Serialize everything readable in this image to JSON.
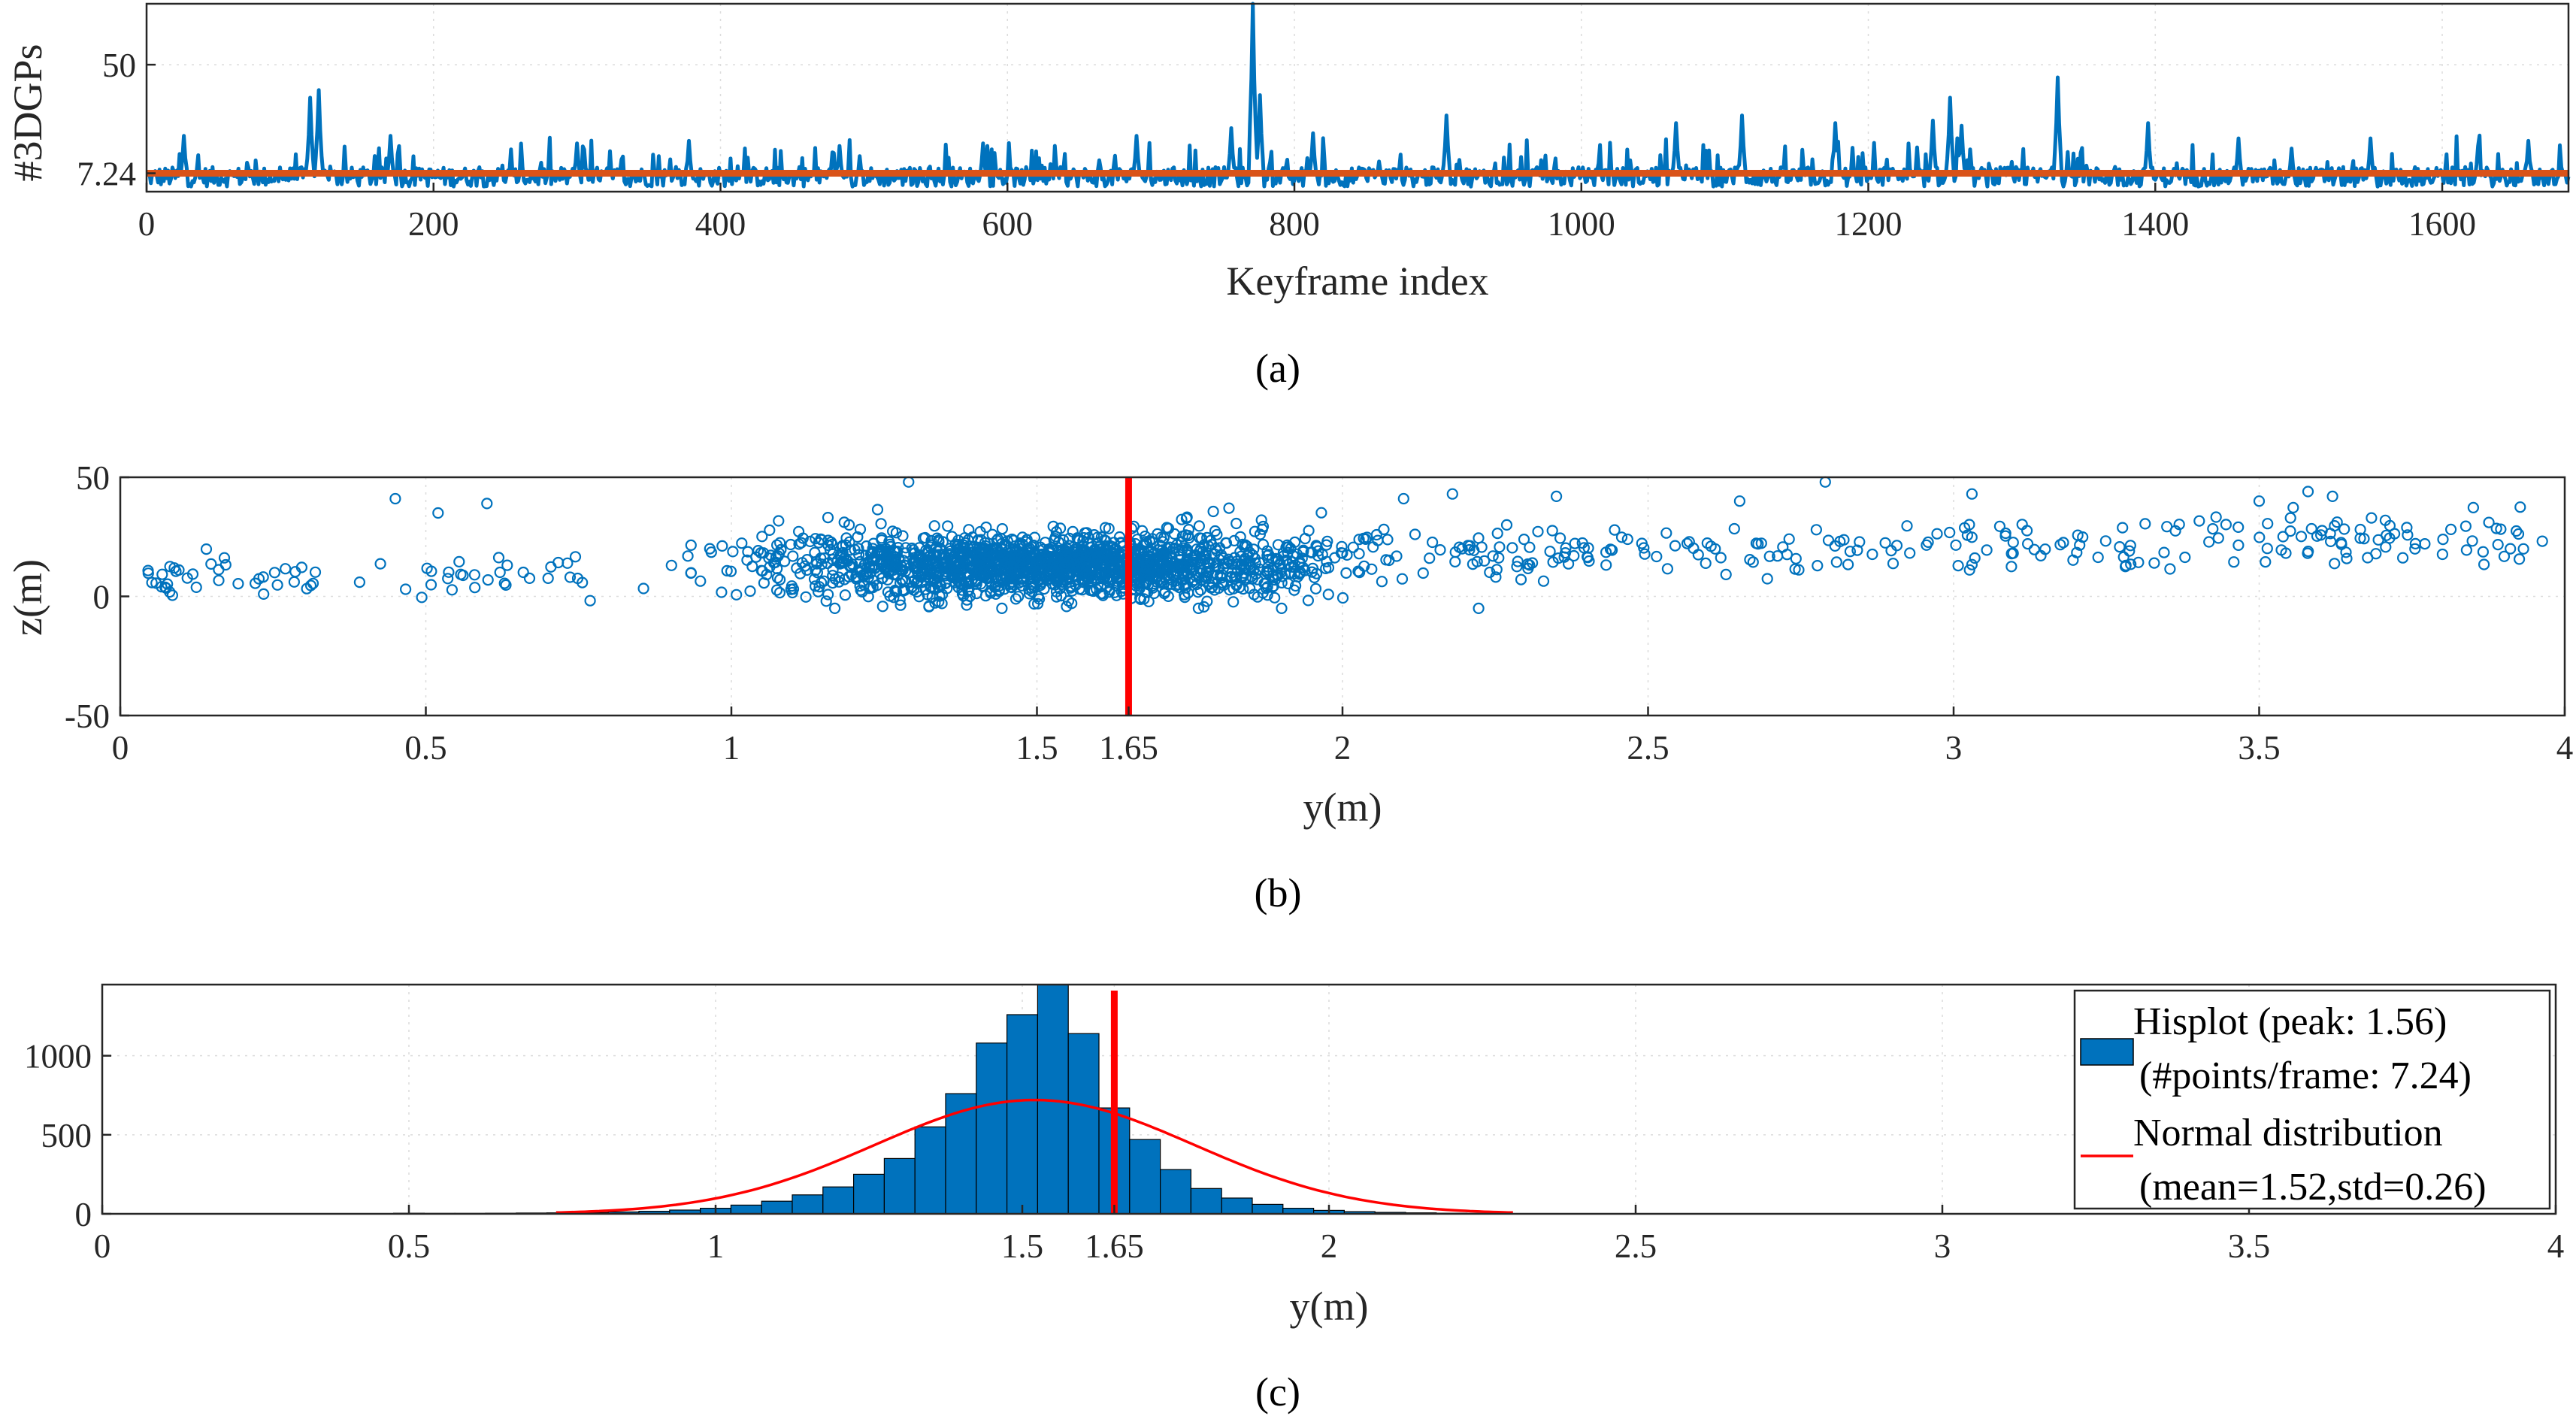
{
  "figure": {
    "captions": [
      "(a)",
      "(b)",
      "(c)"
    ]
  },
  "colors": {
    "blue": "#0072bd",
    "orange": "#d95319",
    "red": "#ff0000",
    "axis": "#262626"
  },
  "chart_data": [
    {
      "type": "line",
      "panel": "a",
      "xlabel": "Keyframe index",
      "ylabel": "#3DGPs",
      "xlim": [
        0,
        1688
      ],
      "ylim": [
        0,
        74
      ],
      "xticks": [
        0,
        200,
        400,
        600,
        800,
        1000,
        1200,
        1400,
        1600
      ],
      "yticks": [
        7.24,
        50
      ],
      "ytick_labels": [
        "7.24",
        "50"
      ],
      "baseline_noise_range": [
        2,
        16
      ],
      "spikes": [
        {
          "x": 26,
          "y": 22
        },
        {
          "x": 114,
          "y": 37
        },
        {
          "x": 120,
          "y": 40
        },
        {
          "x": 170,
          "y": 22
        },
        {
          "x": 300,
          "y": 19
        },
        {
          "x": 378,
          "y": 20
        },
        {
          "x": 483,
          "y": 18
        },
        {
          "x": 583,
          "y": 19
        },
        {
          "x": 690,
          "y": 22
        },
        {
          "x": 756,
          "y": 25
        },
        {
          "x": 771,
          "y": 74
        },
        {
          "x": 776,
          "y": 38
        },
        {
          "x": 813,
          "y": 23
        },
        {
          "x": 906,
          "y": 30
        },
        {
          "x": 1066,
          "y": 27
        },
        {
          "x": 1112,
          "y": 30
        },
        {
          "x": 1177,
          "y": 27
        },
        {
          "x": 1245,
          "y": 28
        },
        {
          "x": 1257,
          "y": 37
        },
        {
          "x": 1265,
          "y": 26
        },
        {
          "x": 1332,
          "y": 45
        },
        {
          "x": 1395,
          "y": 27
        },
        {
          "x": 1458,
          "y": 21
        },
        {
          "x": 1495,
          "y": 17
        },
        {
          "x": 1550,
          "y": 21
        },
        {
          "x": 1625,
          "y": 18
        },
        {
          "x": 1660,
          "y": 20
        }
      ],
      "mean_line": {
        "y": 7.24
      }
    },
    {
      "type": "scatter",
      "panel": "b",
      "xlabel": "y(m)",
      "ylabel": "z(m)",
      "xlim": [
        0,
        4
      ],
      "ylim": [
        -50,
        50
      ],
      "xticks": [
        0,
        0.5,
        1,
        1.5,
        1.65,
        2,
        2.5,
        3,
        3.5,
        4
      ],
      "xtick_labels": [
        "0",
        "0.5",
        "1",
        "1.5",
        "1.65",
        "2",
        "2.5",
        "3",
        "3.5",
        "4"
      ],
      "yticks": [
        -50,
        0,
        50
      ],
      "cluster": {
        "y_center": 1.52,
        "y_std": 0.26,
        "z_center": 13,
        "z_spread": 6
      },
      "marker_line": {
        "x": 1.65
      }
    },
    {
      "type": "bar",
      "panel": "c",
      "xlabel": "y(m)",
      "ylabel": "",
      "xlim": [
        0,
        4
      ],
      "ylim": [
        0,
        1450
      ],
      "xticks": [
        0,
        0.5,
        1,
        1.5,
        1.65,
        2,
        2.5,
        3,
        3.5,
        4
      ],
      "xtick_labels": [
        "0",
        "0.5",
        "1",
        "1.5",
        "1.65",
        "2",
        "2.5",
        "3",
        "3.5",
        "4"
      ],
      "yticks": [
        0,
        500,
        1000
      ],
      "bin_width": 0.05,
      "bins": [
        {
          "x": 1.0,
          "y": 35
        },
        {
          "x": 1.05,
          "y": 55
        },
        {
          "x": 1.1,
          "y": 80
        },
        {
          "x": 1.15,
          "y": 120
        },
        {
          "x": 1.2,
          "y": 170
        },
        {
          "x": 1.25,
          "y": 250
        },
        {
          "x": 1.3,
          "y": 350
        },
        {
          "x": 1.35,
          "y": 550
        },
        {
          "x": 1.4,
          "y": 760
        },
        {
          "x": 1.45,
          "y": 1080
        },
        {
          "x": 1.5,
          "y": 1260
        },
        {
          "x": 1.55,
          "y": 1450
        },
        {
          "x": 1.6,
          "y": 1140
        },
        {
          "x": 1.65,
          "y": 670
        },
        {
          "x": 1.7,
          "y": 470
        },
        {
          "x": 1.75,
          "y": 280
        },
        {
          "x": 1.8,
          "y": 160
        },
        {
          "x": 1.85,
          "y": 100
        },
        {
          "x": 1.9,
          "y": 60
        },
        {
          "x": 1.95,
          "y": 35
        },
        {
          "x": 2.0,
          "y": 22
        },
        {
          "x": 2.05,
          "y": 14
        },
        {
          "x": 2.1,
          "y": 9
        },
        {
          "x": 2.15,
          "y": 6
        },
        {
          "x": 2.2,
          "y": 4
        },
        {
          "x": 2.25,
          "y": 3
        },
        {
          "x": 2.3,
          "y": 2
        },
        {
          "x": 2.35,
          "y": 2
        },
        {
          "x": 0.5,
          "y": 4
        },
        {
          "x": 0.55,
          "y": 3
        },
        {
          "x": 0.6,
          "y": 3
        },
        {
          "x": 0.65,
          "y": 4
        },
        {
          "x": 0.7,
          "y": 5
        },
        {
          "x": 0.75,
          "y": 6
        },
        {
          "x": 0.8,
          "y": 8
        },
        {
          "x": 0.85,
          "y": 12
        },
        {
          "x": 0.9,
          "y": 16
        },
        {
          "x": 0.95,
          "y": 24
        }
      ],
      "normal_curve": {
        "mean": 1.52,
        "std": 0.26,
        "peak": 720
      },
      "marker_line": {
        "x": 1.65
      },
      "legend": [
        {
          "label": "Hisplot (peak: 1.56)",
          "sublabel": "(#points/frame: 7.24)"
        },
        {
          "label": "Normal distribution",
          "sublabel": "(mean=1.52,std=0.26)"
        }
      ]
    }
  ]
}
